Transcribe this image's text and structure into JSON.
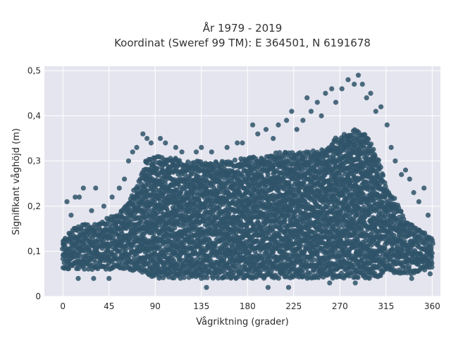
{
  "chart_data": {
    "type": "scatter",
    "title_line1": "År 1979 - 2019",
    "title_line2": "Koordinat (Sweref 99 TM): E 364501, N 6191678",
    "xlabel": "Vågriktning (grader)",
    "ylabel": "Signifikant våghöjd (m)",
    "xlim": [
      -18,
      368
    ],
    "ylim": [
      0,
      0.51
    ],
    "xticks": [
      0,
      45,
      90,
      135,
      180,
      225,
      270,
      315,
      360
    ],
    "xtick_labels": [
      "0",
      "45",
      "90",
      "135",
      "180",
      "225",
      "270",
      "315",
      "360"
    ],
    "yticks": [
      0,
      0.1,
      0.2,
      0.3,
      0.4,
      0.5
    ],
    "ytick_labels": [
      "0",
      "0,1",
      "0,2",
      "0,3",
      "0,4",
      "0,5"
    ],
    "grid": true,
    "legend": "none",
    "marker_color": "#2f5468",
    "plot_background": "#e5e5ef",
    "envelope": {
      "direction_deg": [
        0,
        10,
        20,
        30,
        40,
        50,
        60,
        65,
        75,
        80,
        90,
        105,
        120,
        135,
        150,
        165,
        180,
        195,
        210,
        225,
        240,
        255,
        265,
        275,
        285,
        295,
        305,
        315,
        325,
        335,
        345,
        355,
        360
      ],
      "upper_dense_m": [
        0.13,
        0.15,
        0.16,
        0.16,
        0.17,
        0.18,
        0.2,
        0.22,
        0.26,
        0.3,
        0.31,
        0.31,
        0.3,
        0.3,
        0.3,
        0.3,
        0.31,
        0.31,
        0.32,
        0.32,
        0.32,
        0.33,
        0.35,
        0.36,
        0.37,
        0.36,
        0.32,
        0.25,
        0.21,
        0.17,
        0.15,
        0.14,
        0.13
      ],
      "lower_dense_m": [
        0.06,
        0.06,
        0.06,
        0.06,
        0.06,
        0.06,
        0.06,
        0.06,
        0.05,
        0.05,
        0.04,
        0.04,
        0.04,
        0.04,
        0.04,
        0.04,
        0.04,
        0.04,
        0.04,
        0.04,
        0.04,
        0.04,
        0.04,
        0.04,
        0.04,
        0.04,
        0.04,
        0.05,
        0.05,
        0.05,
        0.05,
        0.06,
        0.06
      ]
    },
    "outliers": [
      {
        "x": 4,
        "y": 0.21
      },
      {
        "x": 8,
        "y": 0.18
      },
      {
        "x": 12,
        "y": 0.22
      },
      {
        "x": 16,
        "y": 0.22
      },
      {
        "x": 20,
        "y": 0.24
      },
      {
        "x": 28,
        "y": 0.19
      },
      {
        "x": 32,
        "y": 0.24
      },
      {
        "x": 40,
        "y": 0.2
      },
      {
        "x": 48,
        "y": 0.22
      },
      {
        "x": 55,
        "y": 0.24
      },
      {
        "x": 60,
        "y": 0.26
      },
      {
        "x": 64,
        "y": 0.3
      },
      {
        "x": 68,
        "y": 0.32
      },
      {
        "x": 72,
        "y": 0.33
      },
      {
        "x": 78,
        "y": 0.36
      },
      {
        "x": 82,
        "y": 0.35
      },
      {
        "x": 86,
        "y": 0.34
      },
      {
        "x": 95,
        "y": 0.35
      },
      {
        "x": 100,
        "y": 0.34
      },
      {
        "x": 110,
        "y": 0.33
      },
      {
        "x": 116,
        "y": 0.32
      },
      {
        "x": 130,
        "y": 0.32
      },
      {
        "x": 135,
        "y": 0.33
      },
      {
        "x": 145,
        "y": 0.32
      },
      {
        "x": 160,
        "y": 0.33
      },
      {
        "x": 170,
        "y": 0.34
      },
      {
        "x": 175,
        "y": 0.34
      },
      {
        "x": 185,
        "y": 0.38
      },
      {
        "x": 190,
        "y": 0.36
      },
      {
        "x": 198,
        "y": 0.37
      },
      {
        "x": 205,
        "y": 0.35
      },
      {
        "x": 210,
        "y": 0.38
      },
      {
        "x": 218,
        "y": 0.39
      },
      {
        "x": 223,
        "y": 0.41
      },
      {
        "x": 228,
        "y": 0.37
      },
      {
        "x": 234,
        "y": 0.39
      },
      {
        "x": 238,
        "y": 0.44
      },
      {
        "x": 242,
        "y": 0.41
      },
      {
        "x": 248,
        "y": 0.43
      },
      {
        "x": 252,
        "y": 0.4
      },
      {
        "x": 256,
        "y": 0.45
      },
      {
        "x": 262,
        "y": 0.46
      },
      {
        "x": 266,
        "y": 0.43
      },
      {
        "x": 272,
        "y": 0.46
      },
      {
        "x": 278,
        "y": 0.48
      },
      {
        "x": 284,
        "y": 0.47
      },
      {
        "x": 288,
        "y": 0.49
      },
      {
        "x": 292,
        "y": 0.47
      },
      {
        "x": 296,
        "y": 0.44
      },
      {
        "x": 300,
        "y": 0.45
      },
      {
        "x": 305,
        "y": 0.41
      },
      {
        "x": 310,
        "y": 0.42
      },
      {
        "x": 316,
        "y": 0.38
      },
      {
        "x": 320,
        "y": 0.33
      },
      {
        "x": 324,
        "y": 0.3
      },
      {
        "x": 330,
        "y": 0.27
      },
      {
        "x": 334,
        "y": 0.28
      },
      {
        "x": 338,
        "y": 0.26
      },
      {
        "x": 342,
        "y": 0.23
      },
      {
        "x": 347,
        "y": 0.21
      },
      {
        "x": 352,
        "y": 0.24
      },
      {
        "x": 356,
        "y": 0.18
      },
      {
        "x": 15,
        "y": 0.04
      },
      {
        "x": 30,
        "y": 0.04
      },
      {
        "x": 45,
        "y": 0.04
      },
      {
        "x": 140,
        "y": 0.02
      },
      {
        "x": 200,
        "y": 0.02
      },
      {
        "x": 220,
        "y": 0.02
      },
      {
        "x": 260,
        "y": 0.03
      },
      {
        "x": 285,
        "y": 0.03
      },
      {
        "x": 340,
        "y": 0.04
      },
      {
        "x": 358,
        "y": 0.05
      }
    ]
  }
}
